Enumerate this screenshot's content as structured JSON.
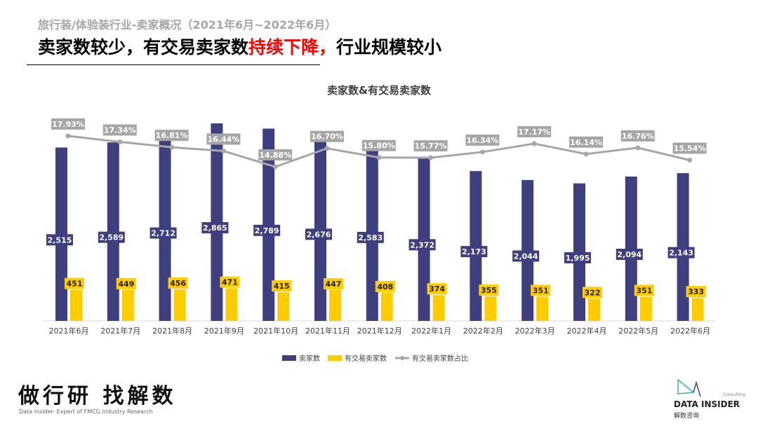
{
  "header": {
    "subtitle": "旅行装/体验装行业-卖家概况（2021年6月~2022年6月）",
    "title_a": "卖家数较少，有交易卖家数",
    "title_red": "持续下降，",
    "title_b": "行业规模较小"
  },
  "chart_data": {
    "type": "bar+line",
    "title": "卖家数&有交易卖家数",
    "categories": [
      "2021年6月",
      "2021年7月",
      "2021年8月",
      "2021年9月",
      "2021年10月",
      "2021年11月",
      "2021年12月",
      "2022年1月",
      "2022年2月",
      "2022年3月",
      "2022年4月",
      "2022年5月",
      "2022年6月"
    ],
    "series": [
      {
        "name": "卖家数",
        "type": "bar",
        "color": "#3f3f7f",
        "values": [
          2515,
          2589,
          2712,
          2865,
          2789,
          2676,
          2583,
          2372,
          2173,
          2044,
          1995,
          2094,
          2143
        ],
        "labels": [
          "2,515",
          "2,589",
          "2,712",
          "2,865",
          "2,789",
          "2,676",
          "2,583",
          "2,372",
          "2,173",
          "2,044",
          "1,995",
          "2,094",
          "2,143"
        ]
      },
      {
        "name": "有交易卖家数",
        "type": "bar",
        "color": "#ffcc00",
        "values": [
          451,
          449,
          456,
          471,
          415,
          447,
          408,
          374,
          355,
          351,
          322,
          351,
          333
        ]
      },
      {
        "name": "有交易卖家数占比",
        "type": "line",
        "color": "#a6a6a6",
        "values": [
          17.93,
          17.34,
          16.81,
          16.44,
          14.88,
          16.7,
          15.8,
          15.77,
          16.34,
          17.17,
          16.14,
          16.76,
          15.54
        ],
        "labels": [
          "17.93%",
          "17.34%",
          "16.81%",
          "16.44%",
          "14.88%",
          "16.70%",
          "15.80%",
          "15.77%",
          "16.34%",
          "17.17%",
          "16.14%",
          "16.76%",
          "15.54%"
        ]
      }
    ],
    "legend": "bottom",
    "grid": false
  },
  "footer": {
    "slogan": "做行研 找解数",
    "slogan_en": "Data Insider- Expert of FMCG Industry Research",
    "logo_text": "DATA INSIDER",
    "logo_cn": "解数咨询",
    "logo_small": "Consulting"
  }
}
